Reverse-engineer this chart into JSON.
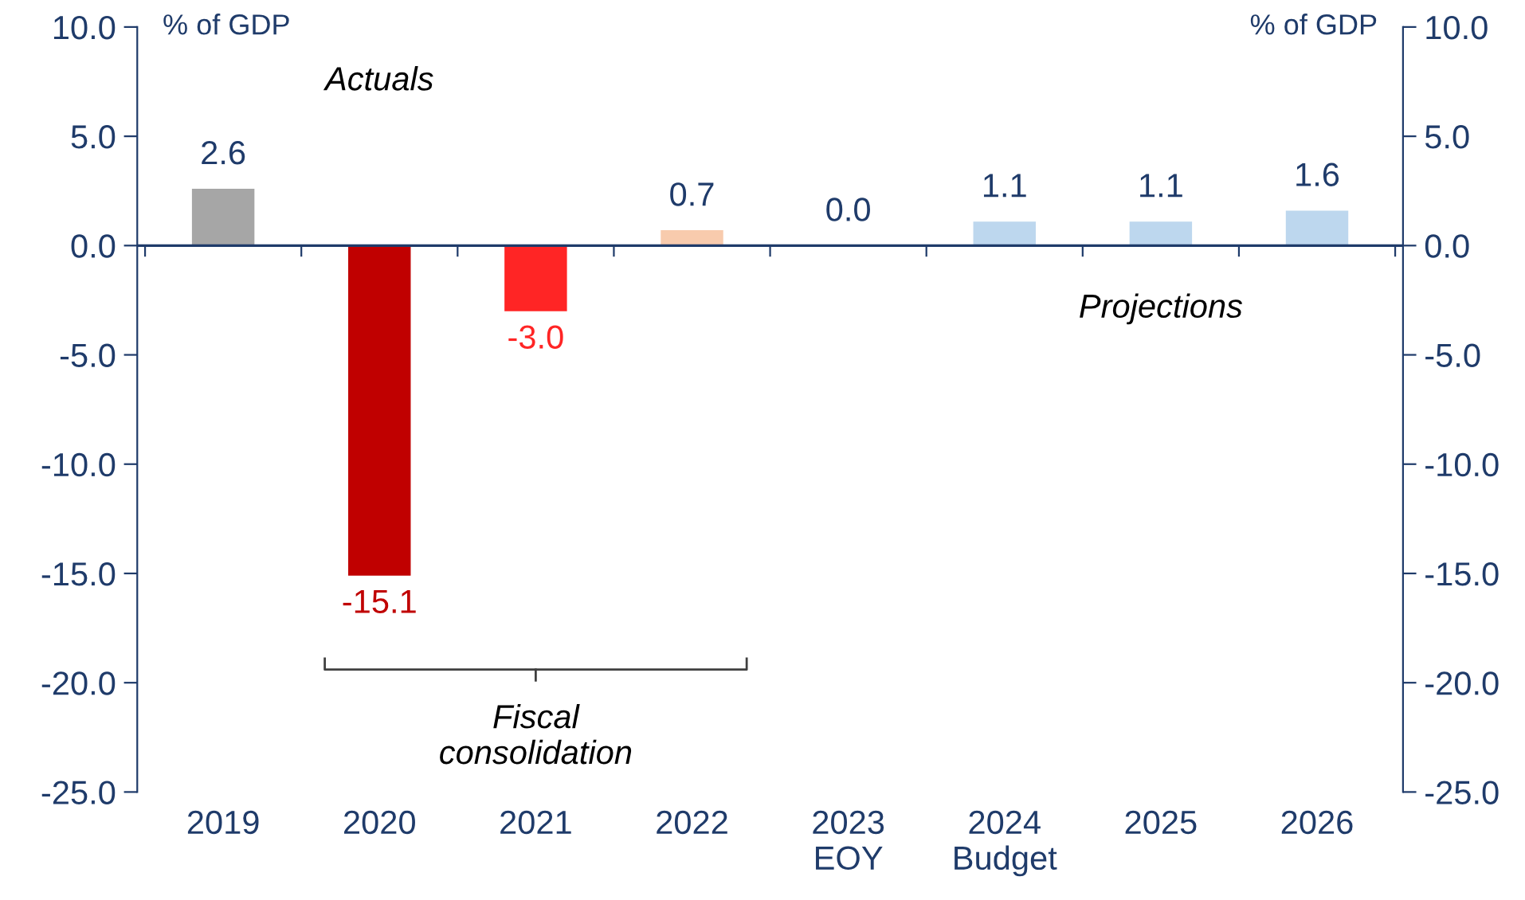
{
  "chart_data": {
    "type": "bar",
    "categories": [
      "2019",
      "2020",
      "2021",
      "2022",
      "2023\nEOY",
      "2024\nBudget",
      "2025",
      "2026"
    ],
    "values": [
      2.6,
      -15.1,
      -3.0,
      0.7,
      0.0,
      1.1,
      1.1,
      1.6
    ],
    "colors": [
      "#a6a6a6",
      "#c00000",
      "#ff2525",
      "#f8cbad",
      "#bdd7ee",
      "#bdd7ee",
      "#bdd7ee",
      "#bdd7ee"
    ],
    "value_labels": [
      "2.6",
      "-15.1",
      "-3.0",
      "0.7",
      "0.0",
      "1.1",
      "1.1",
      "1.6"
    ],
    "ylabel": "% of GDP",
    "y2label": "% of GDP",
    "ylim": [
      -25,
      10
    ],
    "yticks": [
      {
        "value": -25,
        "label": "-25.0"
      },
      {
        "value": -20,
        "label": "-20.0"
      },
      {
        "value": -15,
        "label": "-15.0"
      },
      {
        "value": -10,
        "label": "-10.0"
      },
      {
        "value": -5,
        "label": "-5.0"
      },
      {
        "value": 0,
        "label": "0.0"
      },
      {
        "value": 5,
        "label": "5.0"
      },
      {
        "value": 10,
        "label": "10.0"
      }
    ],
    "y2lim": [
      -25,
      10
    ],
    "y2ticks": [
      {
        "value": -25,
        "label": "-25.0"
      },
      {
        "value": -20,
        "label": "-20.0"
      },
      {
        "value": -15,
        "label": "-15.0"
      },
      {
        "value": -10,
        "label": "-10.0"
      },
      {
        "value": -5,
        "label": "-5.0"
      },
      {
        "value": 0,
        "label": "0.0"
      },
      {
        "value": 5,
        "label": "5.0"
      },
      {
        "value": 10,
        "label": "10.0"
      }
    ],
    "annotations": [
      "Actuals",
      "Projections",
      "Fiscal\nconsolidation"
    ],
    "ref_lines": [
      {
        "axis": "y",
        "value": 0,
        "color": "#1f3b6a"
      }
    ],
    "grid": false
  }
}
